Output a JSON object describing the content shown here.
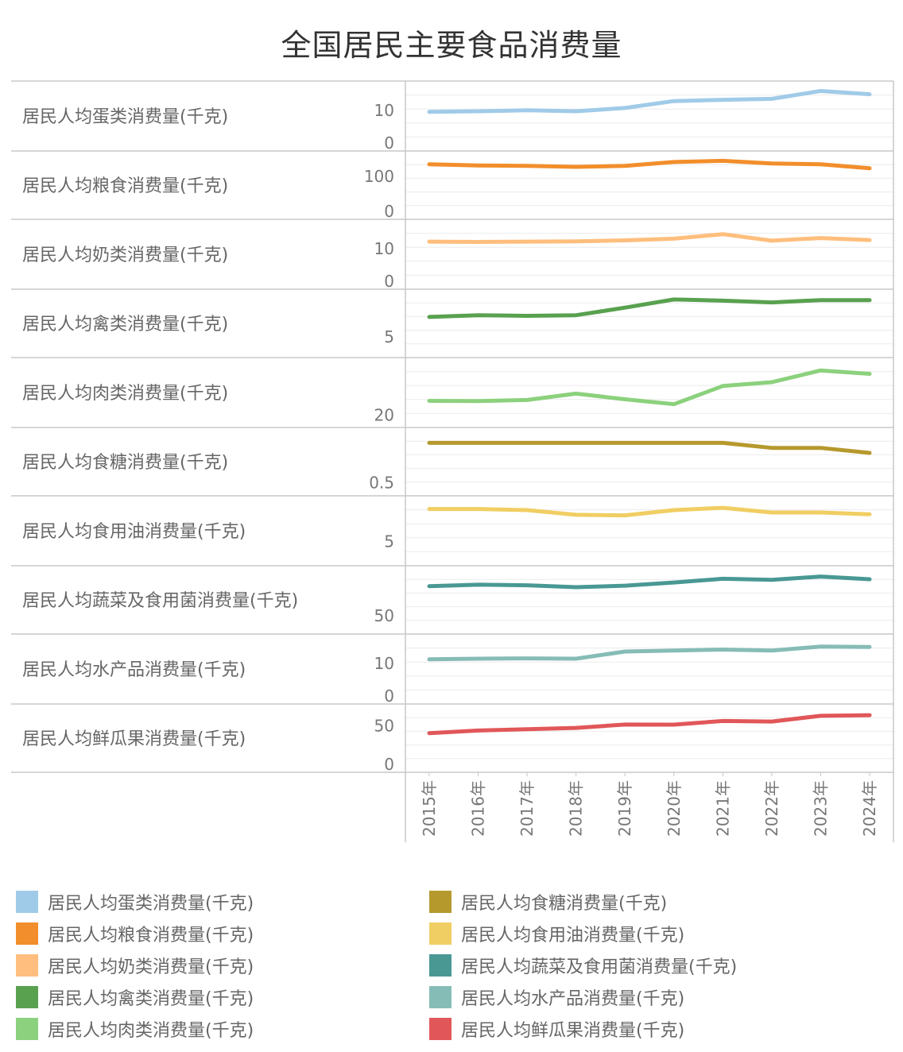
{
  "title": "全国居民主要食品消费量",
  "chart_data": {
    "type": "line",
    "layout": "small-multiples",
    "x": [
      "2015年",
      "2016年",
      "2017年",
      "2018年",
      "2019年",
      "2020年",
      "2021年",
      "2022年",
      "2023年",
      "2024年"
    ],
    "grid": true,
    "legend_position": "bottom",
    "panels": [
      {
        "name": "居民人均蛋类消费量(千克)",
        "color": "#a0cbe8",
        "values": [
          9.5,
          9.7,
          10.0,
          9.7,
          10.7,
          12.8,
          13.2,
          13.5,
          15.9,
          14.9
        ],
        "ylim": [
          0,
          16.5
        ],
        "ticks": [
          {
            "v": 0,
            "label": "0"
          },
          {
            "v": 10,
            "label": "10"
          }
        ]
      },
      {
        "name": "居民人均粮食消费量(千克)",
        "color": "#f28e2b",
        "values": [
          134.5,
          131.4,
          130.1,
          127.2,
          130.1,
          141.2,
          144.6,
          136.8,
          134.5,
          123.4
        ],
        "ylim": [
          0,
          150
        ],
        "ticks": [
          {
            "v": 0,
            "label": "0"
          },
          {
            "v": 100,
            "label": "100"
          }
        ]
      },
      {
        "name": "居民人均奶类消费量(千克)",
        "color": "#ffbe7d",
        "values": [
          12.1,
          12.0,
          12.1,
          12.2,
          12.5,
          13.0,
          14.4,
          12.4,
          13.2,
          12.6
        ],
        "ylim": [
          0,
          16.5
        ],
        "ticks": [
          {
            "v": 0,
            "label": "0"
          },
          {
            "v": 10,
            "label": "10"
          }
        ]
      },
      {
        "name": "居民人均禽类消费量(千克)",
        "color": "#59a14f",
        "values": [
          8.4,
          8.7,
          8.6,
          8.7,
          10.0,
          11.4,
          11.2,
          10.9,
          11.3,
          11.3
        ],
        "ylim": [
          2.8,
          11.8
        ],
        "ticks": [
          {
            "v": 5,
            "label": "5"
          }
        ]
      },
      {
        "name": "居民人均肉类消费量(千克)",
        "color": "#8cd17d",
        "values": [
          26.3,
          26.2,
          26.7,
          29.5,
          27.0,
          24.8,
          32.9,
          34.6,
          39.8,
          38.3
        ],
        "ylim": [
          18,
          42
        ],
        "ticks": [
          {
            "v": 20,
            "label": "20"
          }
        ]
      },
      {
        "name": "居民人均食糖消费量(千克)",
        "color": "#b6992d",
        "values": [
          1.3,
          1.3,
          1.3,
          1.3,
          1.3,
          1.3,
          1.3,
          1.2,
          1.2,
          1.1
        ],
        "ylim": [
          0.4,
          1.45
        ],
        "ticks": [
          {
            "v": 0.5,
            "label": "0.5"
          }
        ]
      },
      {
        "name": "居民人均食用油消费量(千克)",
        "color": "#f1ce63",
        "values": [
          10.6,
          10.6,
          10.4,
          9.6,
          9.5,
          10.4,
          10.8,
          10.0,
          10.0,
          9.7
        ],
        "ylim": [
          2.2,
          11.5
        ],
        "ticks": [
          {
            "v": 5,
            "label": "5"
          }
        ]
      },
      {
        "name": "居民人均蔬菜及食用菌消费量(千克)",
        "color": "#499894",
        "values": [
          97.8,
          100.1,
          99.2,
          96.1,
          98.6,
          103.7,
          109.8,
          108.0,
          113.4,
          109.0
        ],
        "ylim": [
          33,
          118
        ],
        "ticks": [
          {
            "v": 50,
            "label": "50"
          }
        ]
      },
      {
        "name": "居民人均水产品消费量(千克)",
        "color": "#86bcb6",
        "values": [
          11.2,
          11.4,
          11.5,
          11.4,
          13.6,
          13.9,
          14.2,
          13.9,
          15.1,
          15.0
        ],
        "ylim": [
          0,
          16.5
        ],
        "ticks": [
          {
            "v": 0,
            "label": "0"
          },
          {
            "v": 10,
            "label": "10"
          }
        ]
      },
      {
        "name": "居民人均鲜瓜果消费量(千克)",
        "color": "#e15759",
        "values": [
          40.5,
          43.9,
          45.6,
          47.3,
          51.6,
          51.5,
          56.3,
          55.5,
          63.0,
          63.8
        ],
        "ylim": [
          0,
          68
        ],
        "ticks": [
          {
            "v": 0,
            "label": "0"
          },
          {
            "v": 50,
            "label": "50"
          }
        ]
      }
    ]
  }
}
